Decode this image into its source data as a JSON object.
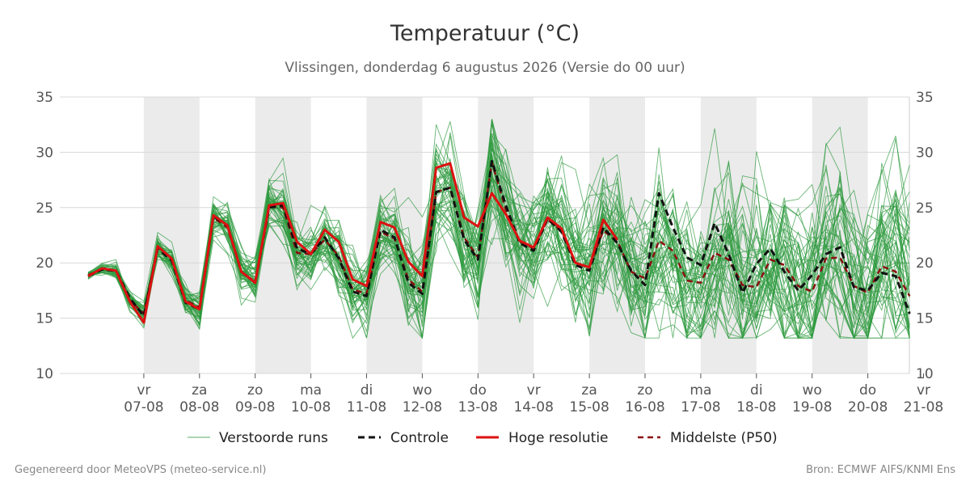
{
  "chart_data": {
    "type": "line",
    "title": "Temperatuur (°C)",
    "subtitle": "Vlissingen, donderdag  6 augustus 2026 (Versie do 00 uur)",
    "ylim": [
      10,
      35
    ],
    "yticks": [
      10,
      15,
      20,
      25,
      30,
      35
    ],
    "x_start": "06-08 00:00",
    "x_end": "21-08 12:00",
    "x_step_hours": 6,
    "x_ticks": [
      {
        "day": "vr",
        "date": "07-08"
      },
      {
        "day": "za",
        "date": "08-08"
      },
      {
        "day": "zo",
        "date": "09-08"
      },
      {
        "day": "ma",
        "date": "10-08"
      },
      {
        "day": "di",
        "date": "11-08"
      },
      {
        "day": "wo",
        "date": "12-08"
      },
      {
        "day": "do",
        "date": "13-08"
      },
      {
        "day": "vr",
        "date": "14-08"
      },
      {
        "day": "za",
        "date": "15-08"
      },
      {
        "day": "zo",
        "date": "16-08"
      },
      {
        "day": "ma",
        "date": "17-08"
      },
      {
        "day": "di",
        "date": "18-08"
      },
      {
        "day": "wo",
        "date": "19-08"
      },
      {
        "day": "do",
        "date": "20-08"
      },
      {
        "day": "vr",
        "date": "21-08"
      }
    ],
    "grid": true,
    "shaded_days": [
      "07-08",
      "09-08",
      "11-08",
      "13-08",
      "15-08",
      "17-08",
      "19-08"
    ],
    "legend_position": "bottom",
    "colors": {
      "ensemble": "#2e9a3e",
      "control": "#111111",
      "hres": "#dd1111",
      "median": "#8b1010",
      "shade": "#ebebeb",
      "grid": "#d8d8d8"
    },
    "series": [
      {
        "name": "Controle",
        "style": "dashed",
        "values": [
          18.8,
          19.4,
          19.3,
          16.8,
          15.2,
          21.3,
          20.2,
          16.4,
          15.8,
          24.2,
          23.4,
          19.2,
          18.2,
          25.0,
          25.2,
          21.3,
          20.8,
          22.3,
          20.4,
          17.4,
          17.0,
          23.0,
          22.3,
          18.2,
          17.2,
          26.4,
          26.8,
          22.1,
          20.3,
          29.2,
          25.2,
          21.8,
          21.1,
          24.0,
          22.8,
          19.8,
          19.3,
          23.2,
          21.8,
          19.3,
          18.0,
          26.3,
          23.2,
          20.5,
          19.8,
          23.6,
          20.8,
          17.3,
          19.9,
          21.3,
          19.2,
          17.5,
          18.9,
          20.8,
          21.4,
          17.8,
          17.5,
          19.1,
          18.8,
          15.4
        ]
      },
      {
        "name": "Hoge resolutie",
        "style": "solid",
        "values": [
          18.8,
          19.5,
          19.3,
          16.5,
          14.6,
          21.5,
          20.4,
          16.5,
          15.8,
          24.3,
          23.4,
          19.2,
          18.2,
          25.2,
          25.4,
          21.9,
          20.8,
          23.0,
          21.9,
          18.5,
          17.9,
          23.7,
          23.2,
          20.1,
          18.8,
          28.6,
          29.0,
          24.1,
          23.3,
          26.3,
          24.4,
          22.0,
          21.4,
          24.1,
          23.1,
          20.0,
          19.6,
          23.9,
          22.1
        ]
      },
      {
        "name": "Middelste (P50)",
        "style": "dashed",
        "values": [
          18.9,
          19.4,
          19.3,
          16.6,
          15.4,
          21.4,
          20.3,
          16.6,
          16.0,
          24.1,
          23.2,
          19.2,
          18.3,
          25.1,
          25.0,
          20.9,
          20.8,
          22.1,
          20.6,
          17.6,
          17.2,
          22.8,
          22.2,
          18.5,
          17.4,
          26.4,
          26.8,
          22.3,
          20.5,
          29.1,
          24.8,
          21.9,
          21.3,
          23.9,
          22.9,
          20.0,
          19.6,
          22.9,
          22.0,
          19.2,
          18.6,
          22.0,
          21.1,
          18.4,
          18.2,
          20.9,
          20.3,
          18.0,
          17.8,
          20.3,
          19.8,
          17.9,
          17.4,
          20.4,
          20.5,
          17.9,
          17.3,
          19.7,
          19.2,
          17.0
        ]
      }
    ],
    "ensemble": {
      "name": "Verstoorde runs",
      "members": 50
    }
  },
  "legend": {
    "ensemble": "Verstoorde runs",
    "control": "Controle",
    "hres": "Hoge resolutie",
    "median": "Middelste (P50)"
  },
  "footer": {
    "left": "Gegenereerd door MeteoVPS (meteo-service.nl)",
    "right": "Bron: ECMWF AIFS/KNMI Ens"
  }
}
